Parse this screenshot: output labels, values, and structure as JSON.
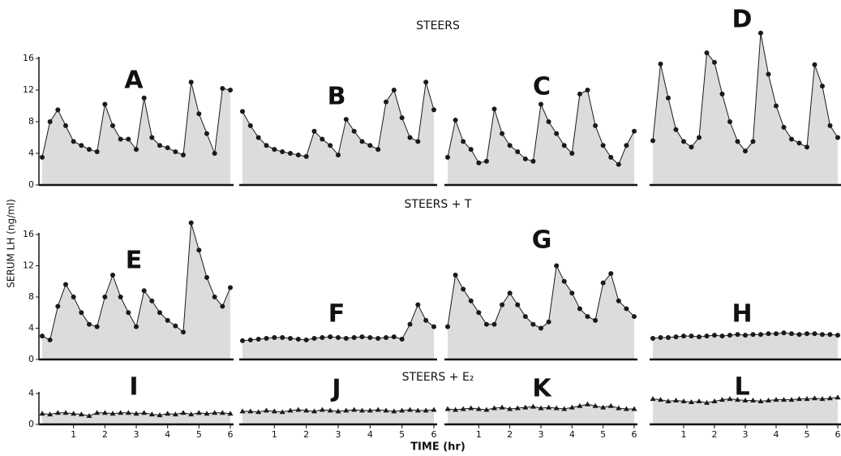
{
  "figure": {
    "ylabel": "SERUM LH (ng/ml)",
    "xlabel": "TIME (hr)",
    "row_titles": [
      "STEERS",
      "STEERS + T",
      "STEERS + E₂"
    ]
  },
  "chart_data": [
    {
      "type": "line",
      "title": "A",
      "marker": "circle",
      "color": "#1a1a1a",
      "fill": "#dcdcdc",
      "xlim": [
        0,
        6
      ],
      "ylim": [
        0,
        16
      ],
      "yticks": [
        0,
        4,
        8,
        12,
        16
      ],
      "x": [
        0,
        0.25,
        0.5,
        0.75,
        1,
        1.25,
        1.5,
        1.75,
        2,
        2.25,
        2.5,
        2.75,
        3,
        3.25,
        3.5,
        3.75,
        4,
        4.25,
        4.5,
        4.75,
        5,
        5.25,
        5.5,
        5.75,
        6
      ],
      "values": [
        3.5,
        8,
        9.5,
        7.5,
        5.5,
        5,
        4.5,
        4.2,
        10.2,
        7.5,
        5.8,
        5.8,
        4.5,
        11,
        6,
        5,
        4.7,
        4.2,
        3.8,
        13,
        9,
        6.5,
        4,
        12.2,
        12
      ]
    },
    {
      "type": "line",
      "title": "B",
      "marker": "circle",
      "color": "#1a1a1a",
      "fill": "#dcdcdc",
      "xlim": [
        0,
        6
      ],
      "ylim": [
        0,
        16
      ],
      "x": [
        0,
        0.25,
        0.5,
        0.75,
        1,
        1.25,
        1.5,
        1.75,
        2,
        2.25,
        2.5,
        2.75,
        3,
        3.25,
        3.5,
        3.75,
        4,
        4.25,
        4.5,
        4.75,
        5,
        5.25,
        5.5,
        5.75,
        6
      ],
      "values": [
        9.3,
        7.5,
        6,
        5,
        4.5,
        4.2,
        4,
        3.8,
        3.6,
        6.8,
        5.8,
        5,
        3.8,
        8.3,
        6.8,
        5.5,
        5,
        4.5,
        10.5,
        12,
        8.5,
        6,
        5.5,
        13,
        9.5
      ]
    },
    {
      "type": "line",
      "title": "C",
      "marker": "circle",
      "color": "#1a1a1a",
      "fill": "#dcdcdc",
      "xlim": [
        0,
        6
      ],
      "ylim": [
        0,
        16
      ],
      "x": [
        0,
        0.25,
        0.5,
        0.75,
        1,
        1.25,
        1.5,
        1.75,
        2,
        2.25,
        2.5,
        2.75,
        3,
        3.25,
        3.5,
        3.75,
        4,
        4.25,
        4.5,
        4.75,
        5,
        5.25,
        5.5,
        5.75,
        6
      ],
      "values": [
        3.5,
        8.2,
        5.5,
        4.5,
        2.8,
        3,
        9.6,
        6.5,
        5,
        4.2,
        3.3,
        3,
        10.2,
        8,
        6.5,
        5,
        4,
        11.5,
        12,
        7.5,
        5,
        3.5,
        2.6,
        5,
        6.8
      ]
    },
    {
      "type": "line",
      "title": "D",
      "marker": "circle",
      "color": "#1a1a1a",
      "fill": "#dcdcdc",
      "xlim": [
        0,
        6
      ],
      "ylim": [
        0,
        16
      ],
      "x": [
        0,
        0.25,
        0.5,
        0.75,
        1,
        1.25,
        1.5,
        1.75,
        2,
        2.25,
        2.5,
        2.75,
        3,
        3.25,
        3.5,
        3.75,
        4,
        4.25,
        4.5,
        4.75,
        5,
        5.25,
        5.5,
        5.75,
        6
      ],
      "values": [
        5.6,
        15.3,
        11,
        7,
        5.5,
        4.8,
        6,
        16.7,
        15.5,
        11.5,
        8,
        5.5,
        4.3,
        5.5,
        19.2,
        14,
        10,
        7.3,
        5.8,
        5.3,
        4.8,
        15.2,
        12.5,
        7.5,
        6
      ]
    },
    {
      "type": "line",
      "title": "E",
      "marker": "circle",
      "color": "#1a1a1a",
      "fill": "#dcdcdc",
      "xlim": [
        0,
        6
      ],
      "ylim": [
        0,
        16
      ],
      "yticks": [
        0,
        4,
        8,
        12,
        16
      ],
      "x": [
        0,
        0.25,
        0.5,
        0.75,
        1,
        1.25,
        1.5,
        1.75,
        2,
        2.25,
        2.5,
        2.75,
        3,
        3.25,
        3.5,
        3.75,
        4,
        4.25,
        4.5,
        4.75,
        5,
        5.25,
        5.5,
        5.75,
        6
      ],
      "values": [
        3,
        2.5,
        6.8,
        9.6,
        8,
        6,
        4.5,
        4.2,
        8,
        10.8,
        8,
        6,
        4.2,
        8.8,
        7.5,
        6,
        5,
        4.3,
        3.5,
        17.5,
        14,
        10.5,
        8,
        6.8,
        9.2
      ]
    },
    {
      "type": "line",
      "title": "F",
      "marker": "circle",
      "color": "#1a1a1a",
      "fill": "#dcdcdc",
      "xlim": [
        0,
        6
      ],
      "ylim": [
        0,
        16
      ],
      "x": [
        0,
        0.25,
        0.5,
        0.75,
        1,
        1.25,
        1.5,
        1.75,
        2,
        2.25,
        2.5,
        2.75,
        3,
        3.25,
        3.5,
        3.75,
        4,
        4.25,
        4.5,
        4.75,
        5,
        5.25,
        5.5,
        5.75,
        6
      ],
      "values": [
        2.4,
        2.5,
        2.6,
        2.7,
        2.8,
        2.8,
        2.7,
        2.6,
        2.5,
        2.7,
        2.8,
        2.9,
        2.8,
        2.7,
        2.8,
        2.9,
        2.8,
        2.7,
        2.8,
        2.9,
        2.6,
        4.5,
        7,
        5,
        4.2
      ]
    },
    {
      "type": "line",
      "title": "G",
      "marker": "circle",
      "color": "#1a1a1a",
      "fill": "#dcdcdc",
      "xlim": [
        0,
        6
      ],
      "ylim": [
        0,
        16
      ],
      "x": [
        0,
        0.25,
        0.5,
        0.75,
        1,
        1.25,
        1.5,
        1.75,
        2,
        2.25,
        2.5,
        2.75,
        3,
        3.25,
        3.5,
        3.75,
        4,
        4.25,
        4.5,
        4.75,
        5,
        5.25,
        5.5,
        5.75,
        6
      ],
      "values": [
        4.2,
        10.8,
        9,
        7.5,
        6,
        4.5,
        4.5,
        7,
        8.5,
        7,
        5.5,
        4.5,
        4,
        4.8,
        12,
        10,
        8.5,
        6.5,
        5.5,
        5,
        9.8,
        11,
        7.5,
        6.5,
        5.5
      ]
    },
    {
      "type": "line",
      "title": "H",
      "marker": "circle",
      "color": "#1a1a1a",
      "fill": "#dcdcdc",
      "xlim": [
        0,
        6
      ],
      "ylim": [
        0,
        16
      ],
      "x": [
        0,
        0.25,
        0.5,
        0.75,
        1,
        1.25,
        1.5,
        1.75,
        2,
        2.25,
        2.5,
        2.75,
        3,
        3.25,
        3.5,
        3.75,
        4,
        4.25,
        4.5,
        4.75,
        5,
        5.25,
        5.5,
        5.75,
        6
      ],
      "values": [
        2.7,
        2.8,
        2.8,
        2.9,
        3,
        3,
        2.9,
        3,
        3.1,
        3,
        3.1,
        3.2,
        3.1,
        3.2,
        3.2,
        3.3,
        3.3,
        3.4,
        3.3,
        3.2,
        3.3,
        3.3,
        3.2,
        3.2,
        3.1
      ]
    },
    {
      "type": "line",
      "title": "I",
      "marker": "triangle",
      "color": "#1a1a1a",
      "fill": "#dcdcdc",
      "xlim": [
        0,
        6
      ],
      "ylim": [
        0,
        4
      ],
      "yticks": [
        0,
        4
      ],
      "xticks": [
        1,
        2,
        3,
        4,
        5,
        6
      ],
      "x": [
        0,
        0.25,
        0.5,
        0.75,
        1,
        1.25,
        1.5,
        1.75,
        2,
        2.25,
        2.5,
        2.75,
        3,
        3.25,
        3.5,
        3.75,
        4,
        4.25,
        4.5,
        4.75,
        5,
        5.25,
        5.5,
        5.75,
        6
      ],
      "values": [
        1.4,
        1.3,
        1.5,
        1.5,
        1.4,
        1.3,
        1.1,
        1.5,
        1.5,
        1.4,
        1.5,
        1.5,
        1.4,
        1.5,
        1.3,
        1.2,
        1.4,
        1.3,
        1.5,
        1.3,
        1.5,
        1.4,
        1.5,
        1.5,
        1.4
      ]
    },
    {
      "type": "line",
      "title": "J",
      "marker": "triangle",
      "color": "#1a1a1a",
      "fill": "#dcdcdc",
      "xlim": [
        0,
        6
      ],
      "ylim": [
        0,
        4
      ],
      "xticks": [
        1,
        2,
        3,
        4,
        5,
        6
      ],
      "x": [
        0,
        0.25,
        0.5,
        0.75,
        1,
        1.25,
        1.5,
        1.75,
        2,
        2.25,
        2.5,
        2.75,
        3,
        3.25,
        3.5,
        3.75,
        4,
        4.25,
        4.5,
        4.75,
        5,
        5.25,
        5.5,
        5.75,
        6
      ],
      "values": [
        1.7,
        1.7,
        1.6,
        1.8,
        1.7,
        1.6,
        1.8,
        1.9,
        1.8,
        1.7,
        1.9,
        1.8,
        1.7,
        1.8,
        1.9,
        1.8,
        1.8,
        1.9,
        1.8,
        1.7,
        1.8,
        1.9,
        1.8,
        1.8,
        1.9
      ]
    },
    {
      "type": "line",
      "title": "K",
      "marker": "triangle",
      "color": "#1a1a1a",
      "fill": "#dcdcdc",
      "xlim": [
        0,
        6
      ],
      "ylim": [
        0,
        4
      ],
      "xticks": [
        1,
        2,
        3,
        4,
        5,
        6
      ],
      "x": [
        0,
        0.25,
        0.5,
        0.75,
        1,
        1.25,
        1.5,
        1.75,
        2,
        2.25,
        2.5,
        2.75,
        3,
        3.25,
        3.5,
        3.75,
        4,
        4.25,
        4.5,
        4.75,
        5,
        5.25,
        5.5,
        5.75,
        6
      ],
      "values": [
        2,
        1.9,
        2,
        2.1,
        2,
        1.9,
        2.1,
        2.2,
        2,
        2.1,
        2.2,
        2.3,
        2.1,
        2.2,
        2.1,
        2,
        2.2,
        2.4,
        2.6,
        2.4,
        2.2,
        2.4,
        2.1,
        2,
        2
      ]
    },
    {
      "type": "line",
      "title": "L",
      "marker": "triangle",
      "color": "#1a1a1a",
      "fill": "#dcdcdc",
      "xlim": [
        0,
        6
      ],
      "ylim": [
        0,
        4
      ],
      "xticks": [
        1,
        2,
        3,
        4,
        5,
        6
      ],
      "x": [
        0,
        0.25,
        0.5,
        0.75,
        1,
        1.25,
        1.5,
        1.75,
        2,
        2.25,
        2.5,
        2.75,
        3,
        3.25,
        3.5,
        3.75,
        4,
        4.25,
        4.5,
        4.75,
        5,
        5.25,
        5.5,
        5.75,
        6
      ],
      "values": [
        3.3,
        3.2,
        3,
        3.1,
        3,
        2.9,
        3,
        2.8,
        3,
        3.2,
        3.3,
        3.2,
        3.1,
        3.1,
        3,
        3.1,
        3.2,
        3.2,
        3.2,
        3.3,
        3.3,
        3.4,
        3.3,
        3.4,
        3.5
      ]
    }
  ]
}
